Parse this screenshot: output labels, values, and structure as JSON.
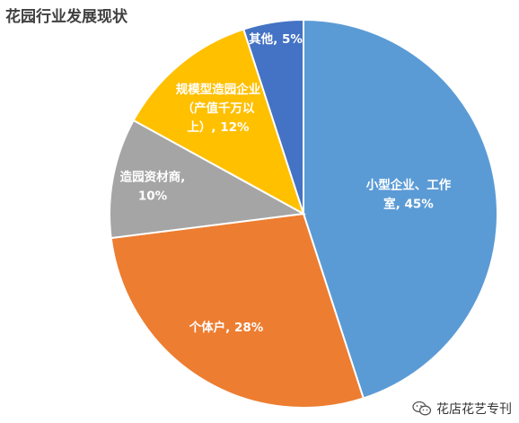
{
  "title": "花园行业发展现状",
  "watermark": "花店花艺专刊",
  "watermark_icon": "wechat-icon",
  "chart_data": {
    "type": "pie",
    "title": "花园行业发展现状",
    "start_angle_deg": 0,
    "direction": "clockwise",
    "slices": [
      {
        "name": "小型企业、工作室",
        "value": 45,
        "color": "#5B9BD5",
        "label_lines": [
          "小型企业、工作",
          "室, 45%"
        ]
      },
      {
        "name": "个体户",
        "value": 28,
        "color": "#ED7D31",
        "label_lines": [
          "个体户, 28%"
        ]
      },
      {
        "name": "造园资材商",
        "value": 10,
        "color": "#A5A5A5",
        "label_lines": [
          "造园资材商,",
          "10%"
        ]
      },
      {
        "name": "规模型造园企业（产值千万以上）",
        "value": 12,
        "color": "#FFC000",
        "label_lines": [
          "规模型造园企业",
          "（产值千万以",
          "上）, 12%"
        ]
      },
      {
        "name": "其他",
        "value": 5,
        "color": "#4472C4",
        "label_lines": [
          "其他, 5%"
        ]
      }
    ]
  }
}
